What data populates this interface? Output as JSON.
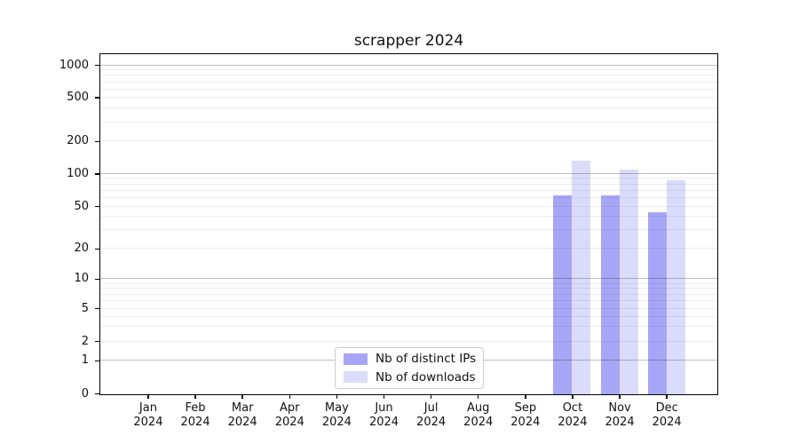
{
  "chart_data": {
    "type": "bar",
    "title": "scrapper 2024",
    "categories": [
      "Jan 2024",
      "Feb 2024",
      "Mar 2024",
      "Apr 2024",
      "May 2024",
      "Jun 2024",
      "Jul 2024",
      "Aug 2024",
      "Sep 2024",
      "Oct 2024",
      "Nov 2024",
      "Dec 2024"
    ],
    "series": [
      {
        "name": "Nb of distinct IPs",
        "color": "#a6a6f7",
        "values": [
          0,
          0,
          0,
          0,
          0,
          0,
          0,
          0,
          0,
          64,
          64,
          45
        ]
      },
      {
        "name": "Nb of downloads",
        "color": "#dbdcfb",
        "values": [
          0,
          0,
          0,
          0,
          0,
          0,
          0,
          0,
          0,
          134,
          110,
          88
        ]
      }
    ],
    "xlabel": "",
    "ylabel": "",
    "yscale": "symlog",
    "yticks": [
      0,
      1,
      2,
      5,
      10,
      20,
      50,
      100,
      200,
      500,
      1000
    ],
    "ylim": [
      0,
      1300
    ],
    "grid": "horizontal, major and minor log lines",
    "legend_position": "lower center"
  }
}
